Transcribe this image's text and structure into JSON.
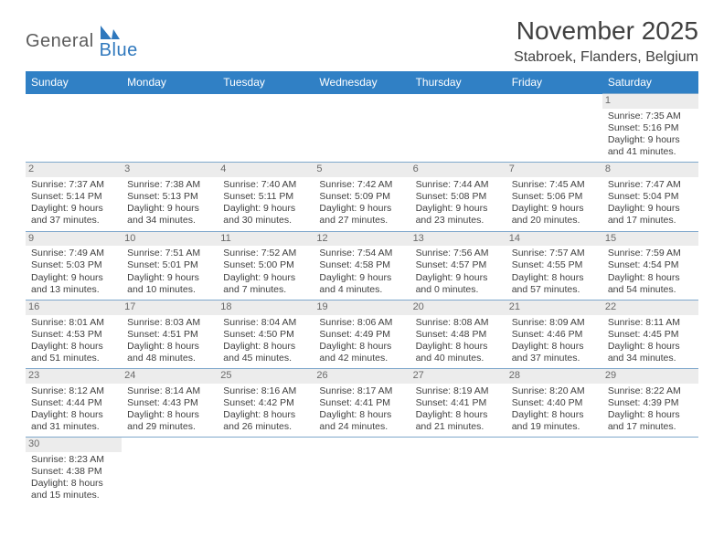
{
  "logo": {
    "general": "General",
    "blue": "Blue"
  },
  "header": {
    "title": "November 2025",
    "location": "Stabroek, Flanders, Belgium"
  },
  "colors": {
    "header_bg": "#3080c5",
    "header_text": "#ffffff",
    "day_shade": "#ececec",
    "rule": "#7fa8cc",
    "title_text": "#404040",
    "logo_gray": "#5c5c5c",
    "logo_blue": "#2f78bd"
  },
  "weekdays": [
    "Sunday",
    "Monday",
    "Tuesday",
    "Wednesday",
    "Thursday",
    "Friday",
    "Saturday"
  ],
  "weeks": [
    [
      null,
      null,
      null,
      null,
      null,
      null,
      {
        "n": "1",
        "sr": "Sunrise: 7:35 AM",
        "ss": "Sunset: 5:16 PM",
        "d1": "Daylight: 9 hours",
        "d2": "and 41 minutes."
      }
    ],
    [
      {
        "n": "2",
        "sr": "Sunrise: 7:37 AM",
        "ss": "Sunset: 5:14 PM",
        "d1": "Daylight: 9 hours",
        "d2": "and 37 minutes."
      },
      {
        "n": "3",
        "sr": "Sunrise: 7:38 AM",
        "ss": "Sunset: 5:13 PM",
        "d1": "Daylight: 9 hours",
        "d2": "and 34 minutes."
      },
      {
        "n": "4",
        "sr": "Sunrise: 7:40 AM",
        "ss": "Sunset: 5:11 PM",
        "d1": "Daylight: 9 hours",
        "d2": "and 30 minutes."
      },
      {
        "n": "5",
        "sr": "Sunrise: 7:42 AM",
        "ss": "Sunset: 5:09 PM",
        "d1": "Daylight: 9 hours",
        "d2": "and 27 minutes."
      },
      {
        "n": "6",
        "sr": "Sunrise: 7:44 AM",
        "ss": "Sunset: 5:08 PM",
        "d1": "Daylight: 9 hours",
        "d2": "and 23 minutes."
      },
      {
        "n": "7",
        "sr": "Sunrise: 7:45 AM",
        "ss": "Sunset: 5:06 PM",
        "d1": "Daylight: 9 hours",
        "d2": "and 20 minutes."
      },
      {
        "n": "8",
        "sr": "Sunrise: 7:47 AM",
        "ss": "Sunset: 5:04 PM",
        "d1": "Daylight: 9 hours",
        "d2": "and 17 minutes."
      }
    ],
    [
      {
        "n": "9",
        "sr": "Sunrise: 7:49 AM",
        "ss": "Sunset: 5:03 PM",
        "d1": "Daylight: 9 hours",
        "d2": "and 13 minutes."
      },
      {
        "n": "10",
        "sr": "Sunrise: 7:51 AM",
        "ss": "Sunset: 5:01 PM",
        "d1": "Daylight: 9 hours",
        "d2": "and 10 minutes."
      },
      {
        "n": "11",
        "sr": "Sunrise: 7:52 AM",
        "ss": "Sunset: 5:00 PM",
        "d1": "Daylight: 9 hours",
        "d2": "and 7 minutes."
      },
      {
        "n": "12",
        "sr": "Sunrise: 7:54 AM",
        "ss": "Sunset: 4:58 PM",
        "d1": "Daylight: 9 hours",
        "d2": "and 4 minutes."
      },
      {
        "n": "13",
        "sr": "Sunrise: 7:56 AM",
        "ss": "Sunset: 4:57 PM",
        "d1": "Daylight: 9 hours",
        "d2": "and 0 minutes."
      },
      {
        "n": "14",
        "sr": "Sunrise: 7:57 AM",
        "ss": "Sunset: 4:55 PM",
        "d1": "Daylight: 8 hours",
        "d2": "and 57 minutes."
      },
      {
        "n": "15",
        "sr": "Sunrise: 7:59 AM",
        "ss": "Sunset: 4:54 PM",
        "d1": "Daylight: 8 hours",
        "d2": "and 54 minutes."
      }
    ],
    [
      {
        "n": "16",
        "sr": "Sunrise: 8:01 AM",
        "ss": "Sunset: 4:53 PM",
        "d1": "Daylight: 8 hours",
        "d2": "and 51 minutes."
      },
      {
        "n": "17",
        "sr": "Sunrise: 8:03 AM",
        "ss": "Sunset: 4:51 PM",
        "d1": "Daylight: 8 hours",
        "d2": "and 48 minutes."
      },
      {
        "n": "18",
        "sr": "Sunrise: 8:04 AM",
        "ss": "Sunset: 4:50 PM",
        "d1": "Daylight: 8 hours",
        "d2": "and 45 minutes."
      },
      {
        "n": "19",
        "sr": "Sunrise: 8:06 AM",
        "ss": "Sunset: 4:49 PM",
        "d1": "Daylight: 8 hours",
        "d2": "and 42 minutes."
      },
      {
        "n": "20",
        "sr": "Sunrise: 8:08 AM",
        "ss": "Sunset: 4:48 PM",
        "d1": "Daylight: 8 hours",
        "d2": "and 40 minutes."
      },
      {
        "n": "21",
        "sr": "Sunrise: 8:09 AM",
        "ss": "Sunset: 4:46 PM",
        "d1": "Daylight: 8 hours",
        "d2": "and 37 minutes."
      },
      {
        "n": "22",
        "sr": "Sunrise: 8:11 AM",
        "ss": "Sunset: 4:45 PM",
        "d1": "Daylight: 8 hours",
        "d2": "and 34 minutes."
      }
    ],
    [
      {
        "n": "23",
        "sr": "Sunrise: 8:12 AM",
        "ss": "Sunset: 4:44 PM",
        "d1": "Daylight: 8 hours",
        "d2": "and 31 minutes."
      },
      {
        "n": "24",
        "sr": "Sunrise: 8:14 AM",
        "ss": "Sunset: 4:43 PM",
        "d1": "Daylight: 8 hours",
        "d2": "and 29 minutes."
      },
      {
        "n": "25",
        "sr": "Sunrise: 8:16 AM",
        "ss": "Sunset: 4:42 PM",
        "d1": "Daylight: 8 hours",
        "d2": "and 26 minutes."
      },
      {
        "n": "26",
        "sr": "Sunrise: 8:17 AM",
        "ss": "Sunset: 4:41 PM",
        "d1": "Daylight: 8 hours",
        "d2": "and 24 minutes."
      },
      {
        "n": "27",
        "sr": "Sunrise: 8:19 AM",
        "ss": "Sunset: 4:41 PM",
        "d1": "Daylight: 8 hours",
        "d2": "and 21 minutes."
      },
      {
        "n": "28",
        "sr": "Sunrise: 8:20 AM",
        "ss": "Sunset: 4:40 PM",
        "d1": "Daylight: 8 hours",
        "d2": "and 19 minutes."
      },
      {
        "n": "29",
        "sr": "Sunrise: 8:22 AM",
        "ss": "Sunset: 4:39 PM",
        "d1": "Daylight: 8 hours",
        "d2": "and 17 minutes."
      }
    ],
    [
      {
        "n": "30",
        "sr": "Sunrise: 8:23 AM",
        "ss": "Sunset: 4:38 PM",
        "d1": "Daylight: 8 hours",
        "d2": "and 15 minutes."
      },
      null,
      null,
      null,
      null,
      null,
      null
    ]
  ]
}
